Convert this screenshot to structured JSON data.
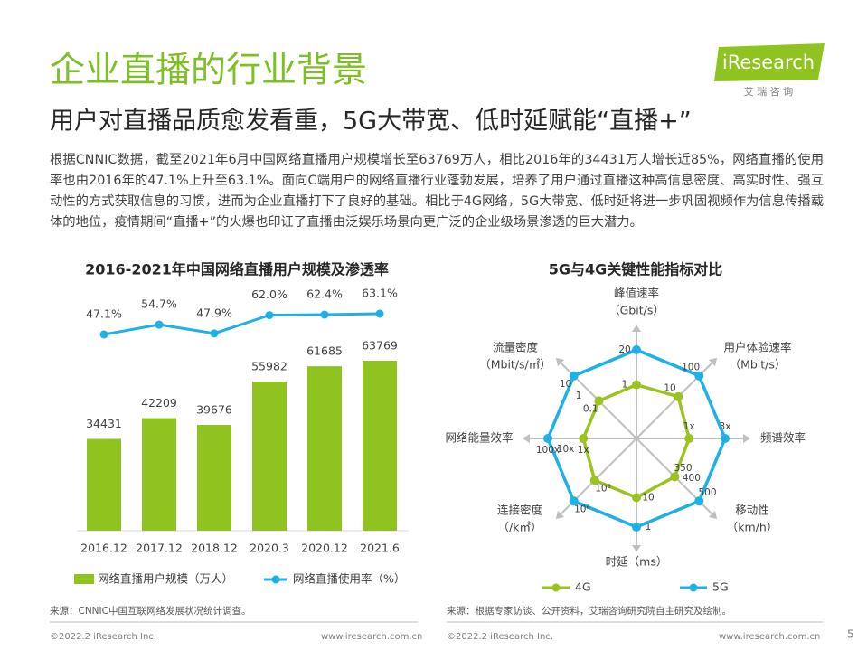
{
  "header": {
    "title": "企业直播的行业背景",
    "subtitle": "用户对直播品质愈发看重，5G大带宽、低时延赋能“直播+”"
  },
  "logo": {
    "name": "iResearch",
    "tagline": "艾 瑞 咨 询"
  },
  "body": "根据CNNIC数据，截至2021年6月中国网络直播用户规模增长至63769万人，相比2016年的34431万人增长近85%，网络直播的使用率也由2016年的47.1%上升至63.1%。面向C端用户的网络直播行业蓬勃发展，培养了用户通过直播这种高信息密度、高实时性、强互动性的方式获取信息的习惯，进而为企业直播打下了良好的基础。相比于4G网络，5G大带宽、低时延将进一步巩固视频作为信息传播载体的地位，疫情期间“直播+”的火爆也印证了直播由泛娱乐场景向更广泛的企业级场景渗透的巨大潜力。",
  "chart_data": [
    {
      "type": "combo",
      "title": "2016-2021年中国网络直播用户规模及渗透率",
      "categories": [
        "2016.12",
        "2017.12",
        "2018.12",
        "2020.3",
        "2020.12",
        "2021.6"
      ],
      "series": [
        {
          "name": "网络直播用户规模（万人）",
          "type": "bar",
          "color": "#8fc31f",
          "values": [
            34431,
            42209,
            39676,
            55982,
            61685,
            63769
          ]
        },
        {
          "name": "网络直播使用率（%）",
          "type": "line",
          "axis": "y2",
          "color": "#1fb0e6",
          "values": [
            47.1,
            54.7,
            47.9,
            62.0,
            62.4,
            63.1
          ],
          "value_labels": [
            "47.1%",
            "54.7%",
            "47.9%",
            "62.0%",
            "62.4%",
            "63.1%"
          ]
        }
      ]
    },
    {
      "type": "radar",
      "title": "5G与4G关键性能指标对比",
      "log": true,
      "axes": [
        {
          "label": "峰值速率",
          "unit": "（Gbit/s）",
          "lim": [
            0.01,
            20
          ]
        },
        {
          "label": "用户体验速率",
          "unit": "（Mbit/s）",
          "lim": [
            0.1,
            100
          ]
        },
        {
          "label": "频谱效率",
          "lim": [
            0.2,
            3
          ]
        },
        {
          "label": "移动性",
          "unit": "（km/h）",
          "lim": [
            200,
            500
          ],
          "ticks": [
            400
          ]
        },
        {
          "label": "时延（ms）",
          "lim": [
            1000,
            1
          ]
        },
        {
          "label": "连接密度",
          "unit": "（/k㎡）",
          "lim": [
            1000,
            1000000
          ]
        },
        {
          "label": "网络能量效率",
          "lim": [
            0.001,
            100
          ],
          "ticks": [
            {
              "value": 10,
              "label": "10x"
            }
          ]
        },
        {
          "label": "流量密度",
          "unit": "（Mbit/s/㎡）",
          "lim": [
            0.0001,
            10
          ],
          "ticks": [
            1
          ]
        }
      ],
      "series": [
        {
          "name": "4G",
          "color": "#9bc31f",
          "values": [
            1,
            10,
            1,
            350,
            10,
            100000,
            1,
            0.1
          ],
          "value_labels": [
            "1",
            "10",
            "1x",
            "350",
            "10",
            "10⁵",
            "1x",
            "0.1"
          ]
        },
        {
          "name": "5G",
          "color": "#1fb0e6",
          "values": [
            20,
            100,
            3,
            500,
            1,
            1000000,
            100,
            10
          ],
          "value_labels": [
            "20",
            "100",
            "3x",
            "500",
            "1",
            "10⁶",
            "100x",
            "10"
          ]
        }
      ]
    }
  ],
  "footer": {
    "left": {
      "source": "来源：CNNIC中国互联网络发展状况统计调查。",
      "copyright": "©2022.2 iResearch Inc.",
      "url": "www.iresearch.com.cn"
    },
    "right": {
      "source": "来源：根据专家访谈、公开资料，艾瑞咨询研究院自主研究及绘制。",
      "copyright": "©2022.2 iResearch Inc.",
      "url": "www.iresearch.com.cn"
    },
    "page": 5
  }
}
